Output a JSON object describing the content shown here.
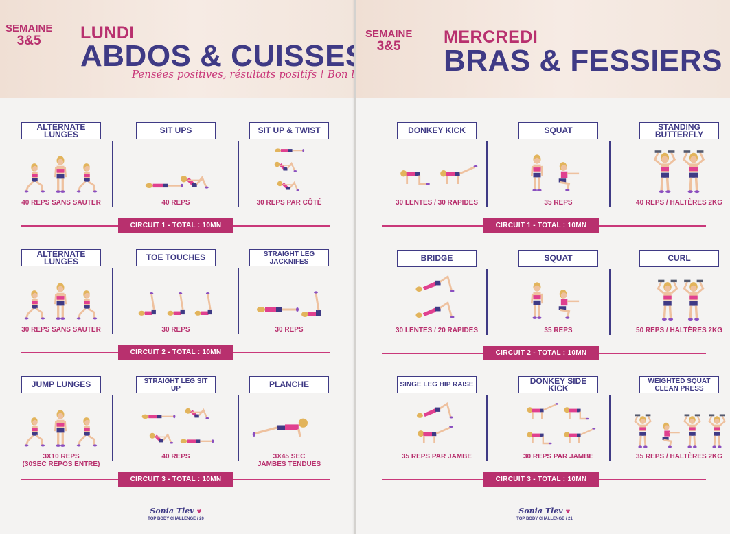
{
  "left": {
    "week_label": "SEMAINE",
    "week_num": "3&5",
    "day": "LUNDI",
    "title": "ABDOS & CUISSES",
    "slogan": "Pensées positives, résultats positifs ! Bon lundi !",
    "rows": [
      {
        "exercises": [
          {
            "name": "ALTERNATE LUNGES",
            "reps": "40 REPS SANS SAUTER",
            "pose": "lunge"
          },
          {
            "name": "SIT UPS",
            "reps": "40 REPS",
            "pose": "situp"
          },
          {
            "name": "SIT UP & TWIST",
            "reps": "30 REPS PAR CÔTÉ",
            "pose": "twist"
          }
        ],
        "circuit": "CIRCUIT 1 - TOTAL : 10MN"
      },
      {
        "exercises": [
          {
            "name": "ALTERNATE LUNGES",
            "reps": "30 REPS SANS SAUTER",
            "pose": "lunge"
          },
          {
            "name": "TOE TOUCHES",
            "reps": "30 REPS",
            "pose": "toetouch"
          },
          {
            "name": "STRAIGHT LEG JACKNIFES",
            "reps": "30 REPS",
            "pose": "jackknife"
          }
        ],
        "circuit": "CIRCUIT 2 - TOTAL : 10MN"
      },
      {
        "exercises": [
          {
            "name": "JUMP LUNGES",
            "reps": "3X10 REPS\n(30SEC REPOS ENTRE)",
            "pose": "lunge"
          },
          {
            "name": "STRAIGHT LEG SIT UP",
            "reps": "40 REPS",
            "pose": "legsitup"
          },
          {
            "name": "PLANCHE",
            "reps": "3X45 SEC\nJAMBES TENDUES",
            "pose": "plank"
          }
        ],
        "circuit": "CIRCUIT 3 - TOTAL : 10MN"
      }
    ],
    "footer_logo": "Sonia Tlev",
    "footer_page": "TOP BODY CHALLENGE / 20"
  },
  "right": {
    "week_label": "SEMAINE",
    "week_num": "3&5",
    "day": "MERCREDI",
    "title": "BRAS & FESSIERS",
    "rows": [
      {
        "exercises": [
          {
            "name": "DONKEY KICK",
            "reps": "30 LENTES / 30 RAPIDES",
            "pose": "donkey"
          },
          {
            "name": "SQUAT",
            "reps": "35 REPS",
            "pose": "squat"
          },
          {
            "name": "STANDING BUTTERFLY",
            "reps": "40 REPS / HALTÈRES 2KG",
            "pose": "butterfly"
          }
        ],
        "circuit": "CIRCUIT 1 - TOTAL : 10MN"
      },
      {
        "exercises": [
          {
            "name": "BRIDGE",
            "reps": "30 LENTES / 20 RAPIDES",
            "pose": "bridge"
          },
          {
            "name": "SQUAT",
            "reps": "35 REPS",
            "pose": "squat"
          },
          {
            "name": "CURL",
            "reps": "50 REPS / HALTÈRES 2KG",
            "pose": "curl"
          }
        ],
        "circuit": "CIRCUIT 2 - TOTAL : 10MN"
      },
      {
        "exercises": [
          {
            "name": "SINGE LEG HIP RAISE",
            "reps": "35 REPS PAR JAMBE",
            "pose": "hipraise"
          },
          {
            "name": "DONKEY SIDE KICK",
            "reps": "30 REPS PAR JAMBE",
            "pose": "sidekick"
          },
          {
            "name": "WEIGHTED SQUAT CLEAN PRESS",
            "reps": "35 REPS / HALTÈRES 2KG",
            "pose": "press"
          }
        ],
        "circuit": "CIRCUIT 3 - TOTAL : 10MN"
      }
    ],
    "footer_logo": "Sonia Tlev",
    "footer_page": "TOP BODY CHALLENGE / 21"
  },
  "colors": {
    "navy": "#3f3a85",
    "magenta": "#b8306e",
    "skin": "#eec19f",
    "hair": "#e2b45c",
    "top": "#e0408f",
    "shorts": "#3f3a85",
    "shoe": "#8a4fc0"
  }
}
